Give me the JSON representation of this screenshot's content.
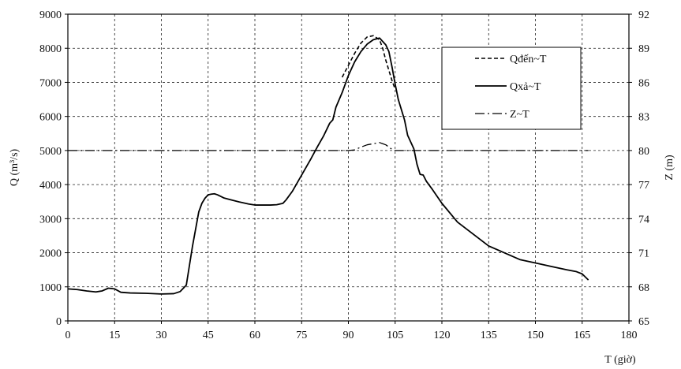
{
  "chart_data": {
    "type": "line",
    "xlabel": "T (giờ)",
    "ylabel": "Q (m³/s)",
    "y2label": "Z (m)",
    "xlim": [
      0,
      180
    ],
    "ylim": [
      0,
      9000
    ],
    "y2lim": [
      65,
      92
    ],
    "xticks": [
      "0",
      "15",
      "30",
      "45",
      "60",
      "75",
      "90",
      "105",
      "120",
      "135",
      "150",
      "165",
      "180"
    ],
    "yticks": [
      "0",
      "1000",
      "2000",
      "3000",
      "4000",
      "5000",
      "6000",
      "7000",
      "8000",
      "9000"
    ],
    "y2ticks": [
      "65",
      "68",
      "71",
      "74",
      "77",
      "80",
      "83",
      "86",
      "89",
      "92"
    ],
    "grid": true,
    "legend_position": "top-right",
    "legend": [
      "Qđến~T",
      "Qxả~T",
      "Z~T"
    ],
    "series": [
      {
        "name": "Qđến~T",
        "axis": "left",
        "style": "dashed",
        "x": [
          88,
          90,
          92,
          94,
          96,
          98,
          100,
          101,
          102,
          103,
          104,
          105
        ],
        "y": [
          7150,
          7500,
          7850,
          8150,
          8330,
          8370,
          8250,
          8000,
          7650,
          7350,
          7050,
          6800
        ]
      },
      {
        "name": "Qxả~T",
        "axis": "left",
        "style": "solid",
        "x": [
          0,
          3,
          6,
          9,
          11,
          13,
          15,
          17,
          20,
          25,
          30,
          34,
          36,
          38,
          40,
          42,
          43,
          44,
          45,
          46,
          47,
          48,
          50,
          52,
          55,
          58,
          60,
          62,
          65,
          67,
          69,
          70,
          72,
          75,
          78,
          80,
          82,
          84,
          85,
          86,
          88,
          90,
          92,
          94,
          96,
          98,
          100,
          102,
          103,
          104,
          105,
          106,
          108,
          109,
          110,
          111,
          112,
          113,
          114,
          115,
          117,
          120,
          125,
          130,
          135,
          140,
          145,
          150,
          155,
          160,
          163,
          165,
          167
        ],
        "y": [
          940,
          920,
          880,
          850,
          880,
          960,
          940,
          840,
          820,
          810,
          790,
          800,
          860,
          1050,
          2200,
          3200,
          3450,
          3600,
          3700,
          3720,
          3730,
          3700,
          3610,
          3560,
          3490,
          3430,
          3400,
          3400,
          3400,
          3410,
          3450,
          3550,
          3800,
          4280,
          4760,
          5100,
          5420,
          5800,
          5900,
          6270,
          6700,
          7200,
          7600,
          7900,
          8120,
          8250,
          8300,
          8100,
          7900,
          7450,
          6950,
          6500,
          5900,
          5450,
          5250,
          5050,
          4600,
          4300,
          4280,
          4100,
          3850,
          3450,
          2900,
          2550,
          2200,
          2000,
          1800,
          1700,
          1600,
          1500,
          1450,
          1380,
          1200
        ]
      },
      {
        "name": "Z~T",
        "axis": "right",
        "style": "dashdot",
        "x": [
          0,
          20,
          40,
          60,
          80,
          90,
          92,
          94,
          96,
          98,
          100,
          101,
          102,
          104,
          105,
          108,
          120,
          140,
          167
        ],
        "y": [
          80,
          80,
          80,
          80,
          80,
          80,
          80.05,
          80.3,
          80.5,
          80.6,
          80.7,
          80.6,
          80.5,
          80.1,
          80,
          80,
          80,
          80,
          80
        ]
      }
    ]
  }
}
